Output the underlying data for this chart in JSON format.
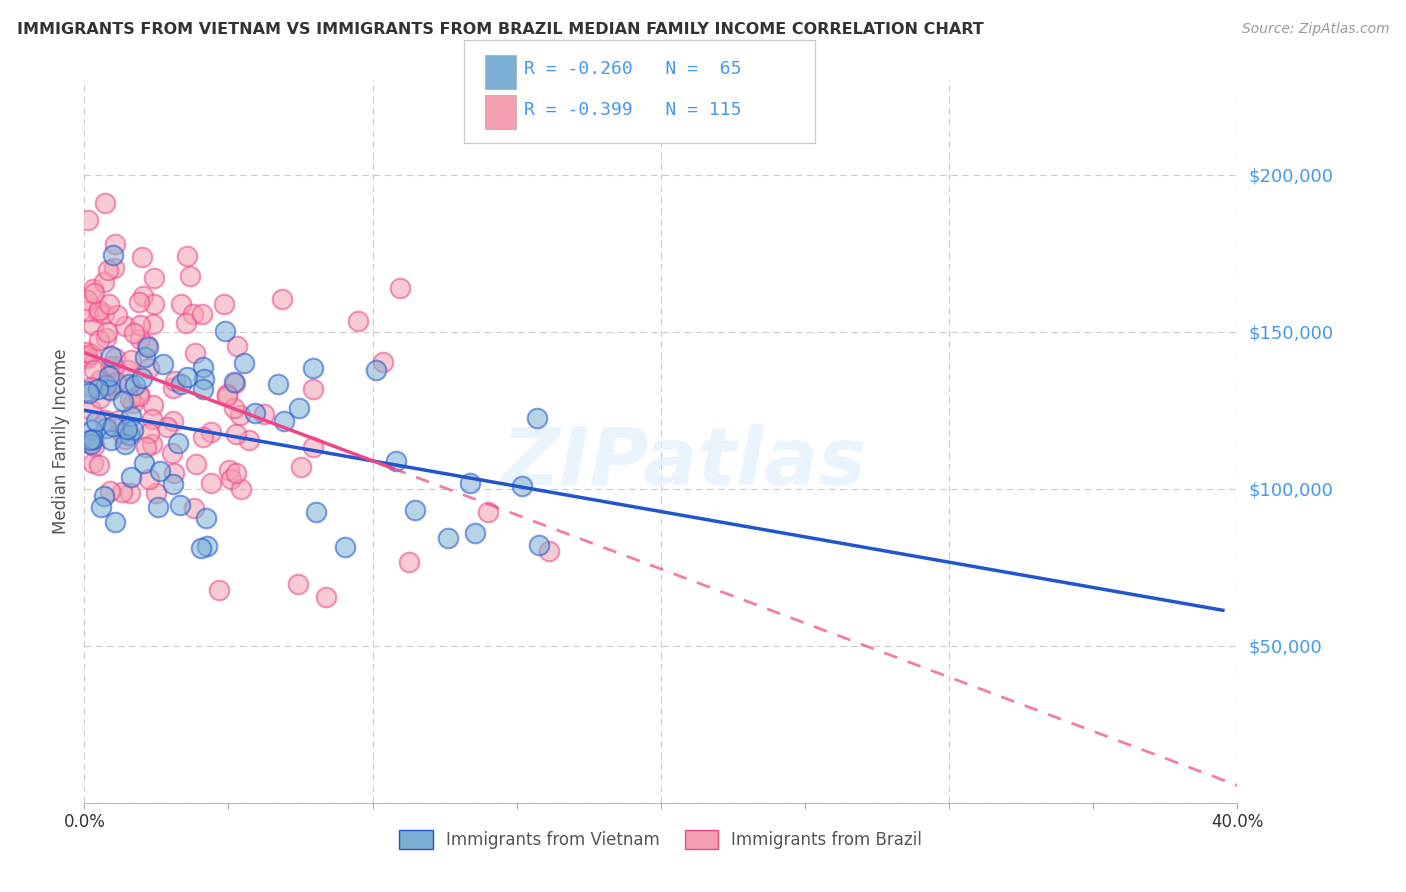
{
  "title": "IMMIGRANTS FROM VIETNAM VS IMMIGRANTS FROM BRAZIL MEDIAN FAMILY INCOME CORRELATION CHART",
  "source": "Source: ZipAtlas.com",
  "ylabel": "Median Family Income",
  "watermark": "ZIPatlas",
  "legend_label1": "Immigrants from Vietnam",
  "legend_label2": "Immigrants from Brazil",
  "yticks": [
    0,
    50000,
    100000,
    150000,
    200000
  ],
  "ytick_labels": [
    "",
    "$50,000",
    "$100,000",
    "$150,000",
    "$200,000"
  ],
  "xlim": [
    0.0,
    0.4
  ],
  "ylim": [
    0,
    230000
  ],
  "blue_color": "#7BAFD4",
  "pink_color": "#F4A0B0",
  "blue_line_color": "#2255CC",
  "pink_line_color": "#EE4488",
  "title_color": "#333333",
  "axis_label_color": "#555555",
  "tick_label_color": "#4499EE",
  "background_color": "#FFFFFF",
  "grid_color": "#CCCCCC",
  "viet_intercept": 115000,
  "viet_slope": -75000,
  "brazil_intercept": 140000,
  "brazil_slope": -270000
}
